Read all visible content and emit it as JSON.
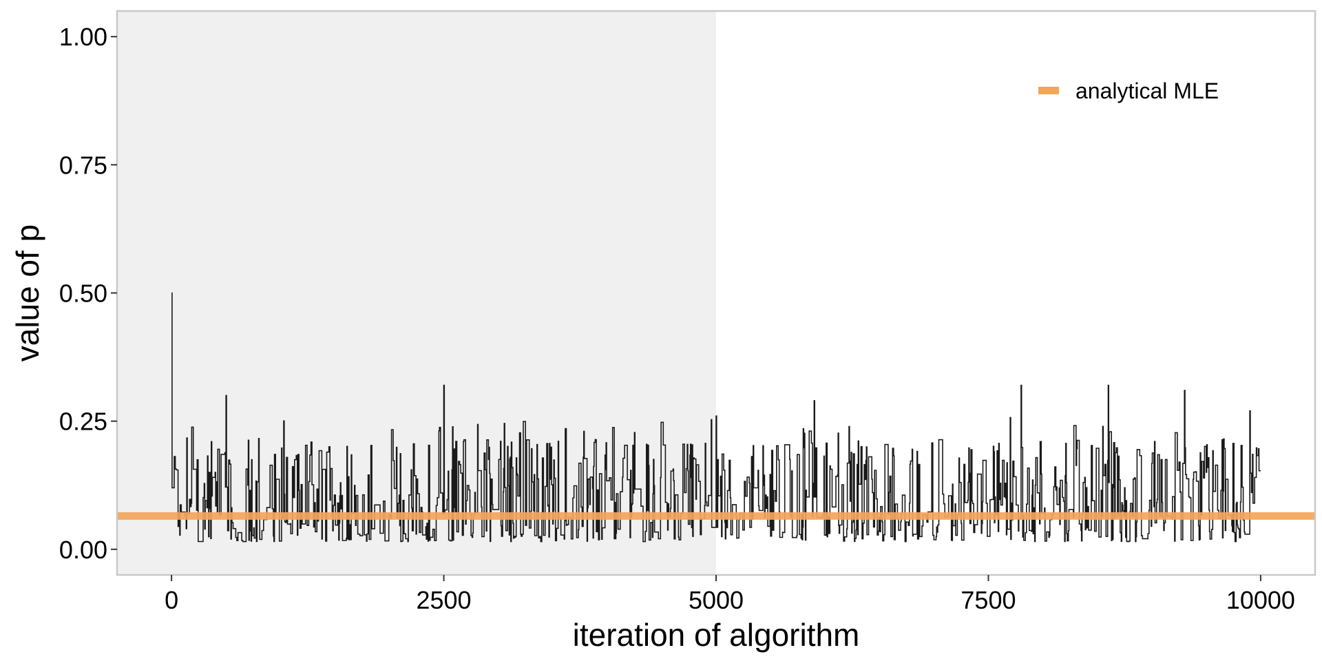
{
  "chart_data": {
    "type": "line",
    "title": "",
    "xlabel": "iteration of algorithm",
    "ylabel": "value of p",
    "xlim": [
      -500,
      10500
    ],
    "ylim": [
      -0.05,
      1.05
    ],
    "x_ticks": [
      0,
      2500,
      5000,
      7500,
      10000
    ],
    "x_tick_labels": [
      "0",
      "2500",
      "5000",
      "7500",
      "10000"
    ],
    "y_ticks": [
      0.0,
      0.25,
      0.5,
      0.75,
      1.0
    ],
    "y_tick_labels": [
      "0.00",
      "0.25",
      "0.50",
      "0.75",
      "1.00"
    ],
    "grid": false,
    "shaded_region": {
      "x_start": -500,
      "x_end": 5000,
      "color": "#f0f0f0"
    },
    "trace": {
      "color": "#1a1a1a",
      "x_start": 0,
      "x_end": 10000,
      "start_value": 0.5,
      "typical_range": [
        0.02,
        0.2
      ],
      "peak_values": [
        [
          500,
          0.3
        ],
        [
          2500,
          0.32
        ],
        [
          5000,
          0.26
        ],
        [
          5900,
          0.29
        ],
        [
          7800,
          0.32
        ],
        [
          8600,
          0.32
        ],
        [
          9300,
          0.31
        ],
        [
          9900,
          0.27
        ]
      ]
    },
    "series": [
      {
        "name": "analytical MLE",
        "type": "hline",
        "value": 0.065,
        "color": "#F2A65A"
      }
    ],
    "legend": {
      "position": "top-right",
      "entries": [
        "analytical MLE"
      ]
    },
    "colors": {
      "panel_border": "#c8c8c8",
      "accent": "#F2A65A"
    }
  }
}
